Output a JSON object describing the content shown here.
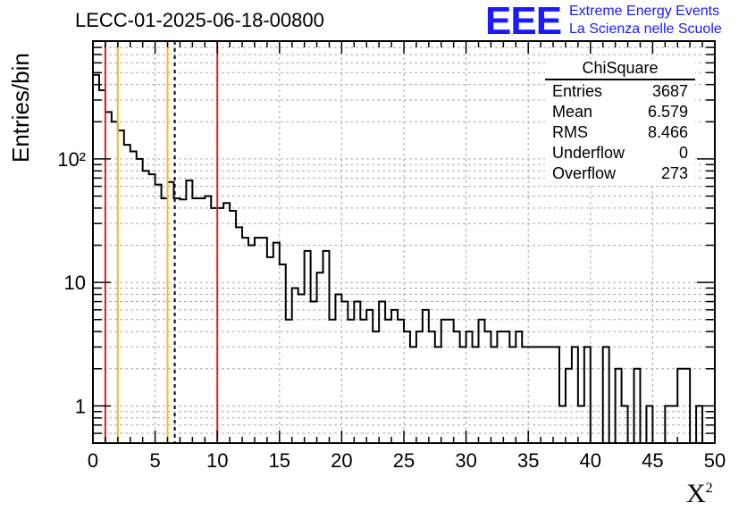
{
  "title": "LECC-01-2025-06-18-00800",
  "logo": {
    "mark": "EEE",
    "line1": "Extreme Energy Events",
    "line2": "La Scienza nelle Scuole",
    "color": "#1a1aff"
  },
  "stats": {
    "title": "ChiSquare",
    "rows": [
      {
        "label": "Entries",
        "value": "3687"
      },
      {
        "label": "Mean",
        "value": "6.579"
      },
      {
        "label": "RMS",
        "value": "8.466"
      },
      {
        "label": "Underflow",
        "value": "0"
      },
      {
        "label": "Overflow",
        "value": "273"
      }
    ]
  },
  "chart_data": {
    "type": "bar",
    "style": "step-histogram",
    "xlabel": "X",
    "xlabel_superscript": "2",
    "ylabel": "Entries/bin",
    "xlim": [
      0,
      50
    ],
    "ylim": [
      0.5,
      900
    ],
    "yscale": "log",
    "grid": true,
    "bin_width": 0.5,
    "x_ticks": [
      "0",
      "5",
      "10",
      "15",
      "20",
      "25",
      "30",
      "35",
      "40",
      "45",
      "50"
    ],
    "y_ticks": [
      {
        "value": 1,
        "label": "1"
      },
      {
        "value": 10,
        "label": "10"
      },
      {
        "value": 100,
        "label": "10²"
      }
    ],
    "values": [
      480,
      360,
      240,
      200,
      170,
      130,
      115,
      100,
      80,
      75,
      62,
      48,
      65,
      48,
      47,
      67,
      48,
      48,
      50,
      40,
      40,
      44,
      38,
      28,
      23,
      20,
      23,
      23,
      16,
      21,
      14,
      5,
      9,
      8,
      18,
      7,
      12,
      18,
      5,
      8,
      7,
      5,
      7,
      5,
      6,
      4,
      7,
      5,
      6,
      5,
      4,
      3,
      4,
      6,
      4,
      3,
      5,
      5,
      4,
      3,
      4,
      3,
      5,
      4,
      3,
      4,
      4,
      3,
      4,
      3,
      3,
      3,
      3,
      3,
      3,
      1,
      2,
      3,
      1,
      3,
      0.01,
      0.01,
      3,
      0.01,
      2,
      1,
      0.01,
      2,
      0.01,
      1,
      0.01,
      0.01,
      1,
      1,
      2,
      2,
      0.01,
      1,
      0.01,
      0.01
    ],
    "vertical_lines": [
      {
        "x": 1,
        "color": "#dd2222",
        "style": "solid"
      },
      {
        "x": 2,
        "color": "#f0c020",
        "style": "solid"
      },
      {
        "x": 6,
        "color": "#f0c020",
        "style": "solid"
      },
      {
        "x": 6.579,
        "color": "#000000",
        "style": "dashed"
      },
      {
        "x": 10,
        "color": "#dd2222",
        "style": "solid"
      }
    ]
  }
}
